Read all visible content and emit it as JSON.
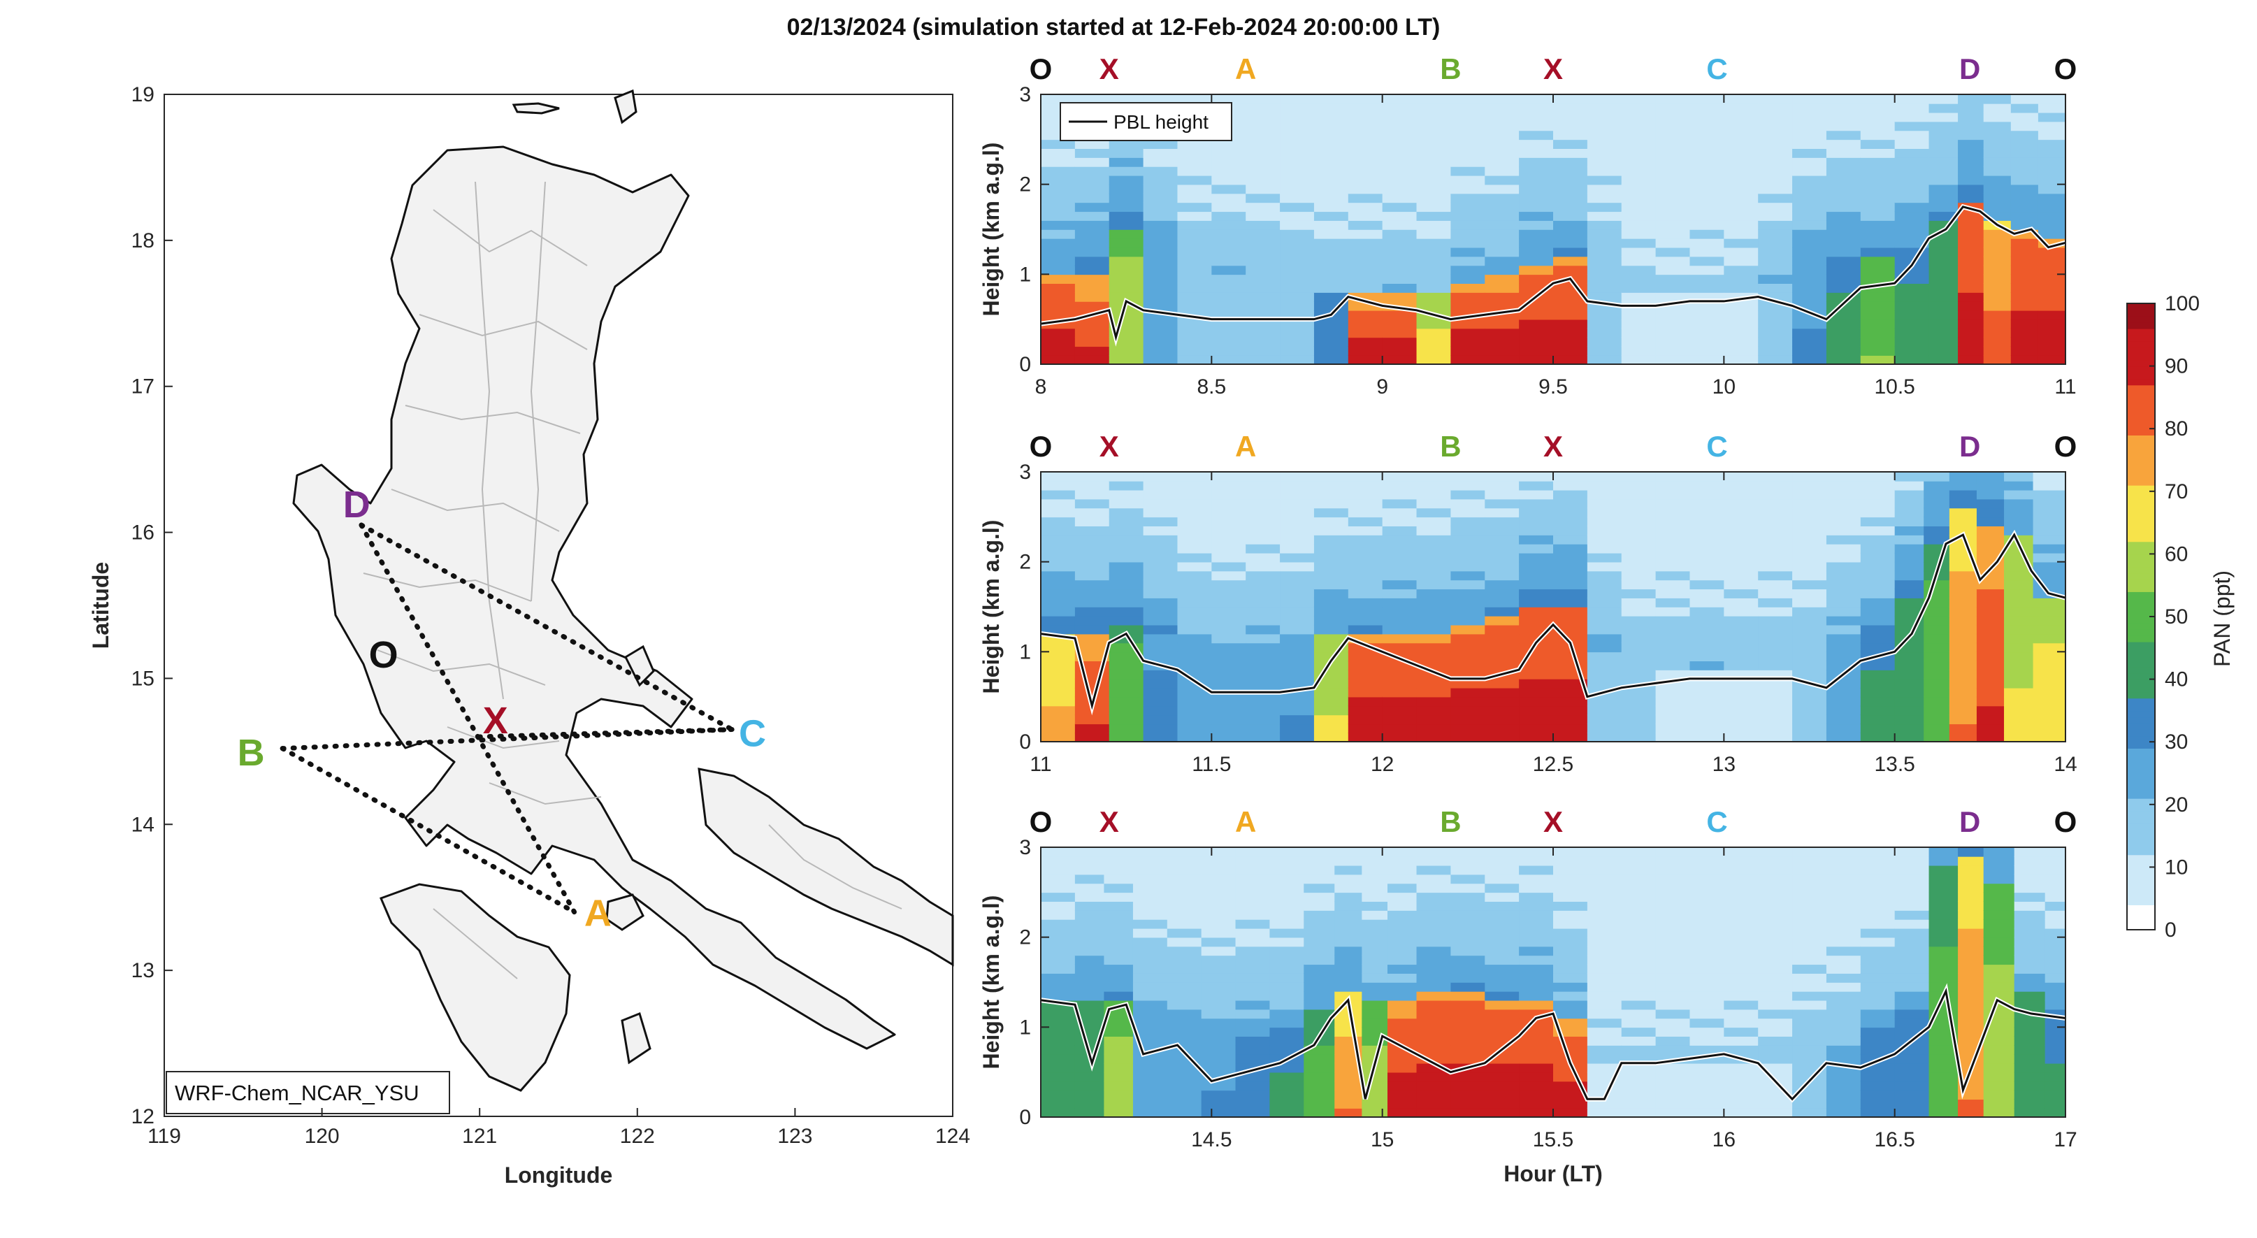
{
  "figure_title": "02/13/2024 (simulation started at 12-Feb-2024 20:00:00 LT)",
  "colors": {
    "O": "#111111",
    "X": "#a50f27",
    "A": "#f0a821",
    "B": "#6aaa2e",
    "C": "#44b4e4",
    "D": "#7b2d8e"
  },
  "colormap": [
    "#ffffff",
    "#cde9f8",
    "#8fcbec",
    "#5aa8db",
    "#3d86c6",
    "#3c9e63",
    "#55b84a",
    "#a6d44d",
    "#f7e34a",
    "#f8a43c",
    "#ee5a2a",
    "#c7191d",
    "#9c0f18"
  ],
  "map": {
    "model_label": "WRF-Chem_NCAR_YSU",
    "xlabel": "Longitude",
    "ylabel": "Latitude",
    "xticks": [
      "119",
      "120",
      "121",
      "122",
      "123",
      "124"
    ],
    "yticks": [
      "12",
      "13",
      "14",
      "15",
      "16",
      "17",
      "18",
      "19"
    ],
    "points": [
      {
        "label": "D",
        "lon": 120.25,
        "lat": 16.05
      },
      {
        "label": "O",
        "lon": 120.37,
        "lat": 15.17
      },
      {
        "label": "X",
        "lon": 121.0,
        "lat": 14.6
      },
      {
        "label": "B",
        "lon": 119.75,
        "lat": 14.52
      },
      {
        "label": "C",
        "lon": 122.6,
        "lat": 14.65
      },
      {
        "label": "A",
        "lon": 121.6,
        "lat": 13.4
      }
    ],
    "label_positions": [
      {
        "label": "D",
        "lon": 120.22,
        "lat": 16.2
      },
      {
        "label": "O",
        "lon": 120.39,
        "lat": 15.17
      },
      {
        "label": "X",
        "lon": 121.1,
        "lat": 14.72
      },
      {
        "label": "B",
        "lon": 119.55,
        "lat": 14.5
      },
      {
        "label": "C",
        "lon": 122.73,
        "lat": 14.63
      },
      {
        "label": "A",
        "lon": 121.75,
        "lat": 13.4
      }
    ]
  },
  "chart_data": [
    {
      "type": "heatmap",
      "title": "02/13/2024 (simulation started at 12-Feb-2024 20:00:00 LT)",
      "ylabel": "Height (km a.g.l)",
      "xlabel": "",
      "xlim": [
        8,
        11
      ],
      "ylim": [
        0,
        3
      ],
      "xticks": [
        "8",
        "8.5",
        "9",
        "9.5",
        "10",
        "10.5",
        "11"
      ],
      "yticks": [
        "0",
        "1",
        "2",
        "3"
      ],
      "legend": "PBL height",
      "waypoints": [
        {
          "label": "O",
          "x": 8.0
        },
        {
          "label": "X",
          "x": 8.2
        },
        {
          "label": "A",
          "x": 8.6
        },
        {
          "label": "B",
          "x": 9.2
        },
        {
          "label": "X",
          "x": 9.5
        },
        {
          "label": "C",
          "x": 9.98
        },
        {
          "label": "D",
          "x": 10.72
        },
        {
          "label": "O",
          "x": 11.0
        }
      ],
      "pbl": {
        "x": [
          8.0,
          8.1,
          8.2,
          8.22,
          8.25,
          8.3,
          8.4,
          8.5,
          8.6,
          8.7,
          8.8,
          8.85,
          8.9,
          9.0,
          9.1,
          9.2,
          9.3,
          9.4,
          9.45,
          9.5,
          9.55,
          9.6,
          9.7,
          9.8,
          9.9,
          10.0,
          10.1,
          10.2,
          10.3,
          10.4,
          10.5,
          10.55,
          10.6,
          10.65,
          10.7,
          10.75,
          10.8,
          10.85,
          10.9,
          10.95,
          11.0
        ],
        "y": [
          0.45,
          0.5,
          0.6,
          0.3,
          0.7,
          0.6,
          0.55,
          0.5,
          0.5,
          0.5,
          0.5,
          0.55,
          0.75,
          0.65,
          0.6,
          0.5,
          0.55,
          0.6,
          0.75,
          0.9,
          0.95,
          0.7,
          0.65,
          0.65,
          0.7,
          0.7,
          0.75,
          0.65,
          0.5,
          0.85,
          0.9,
          1.1,
          1.4,
          1.5,
          1.75,
          1.7,
          1.55,
          1.45,
          1.5,
          1.3,
          1.35
        ]
      },
      "profiles": [
        {
          "x": 8.05,
          "top": 1.0,
          "base": 95,
          "aloft": 25
        },
        {
          "x": 8.15,
          "top": 1.0,
          "base": 90,
          "aloft": 30
        },
        {
          "x": 8.25,
          "top": 1.5,
          "base": 60,
          "aloft": 30
        },
        {
          "x": 8.35,
          "top": 1.3,
          "base": 25,
          "aloft": 20
        },
        {
          "x": 8.45,
          "top": 1.0,
          "base": 20,
          "aloft": 15
        },
        {
          "x": 8.55,
          "top": 1.0,
          "base": 15,
          "aloft": 15
        },
        {
          "x": 8.65,
          "top": 1.0,
          "base": 15,
          "aloft": 15
        },
        {
          "x": 8.75,
          "top": 0.9,
          "base": 20,
          "aloft": 15
        },
        {
          "x": 8.85,
          "top": 0.8,
          "base": 35,
          "aloft": 15
        },
        {
          "x": 8.95,
          "top": 0.8,
          "base": 95,
          "aloft": 15
        },
        {
          "x": 9.05,
          "top": 0.8,
          "base": 95,
          "aloft": 15
        },
        {
          "x": 9.15,
          "top": 0.8,
          "base": 70,
          "aloft": 15
        },
        {
          "x": 9.25,
          "top": 0.9,
          "base": 95,
          "aloft": 20
        },
        {
          "x": 9.35,
          "top": 1.0,
          "base": 95,
          "aloft": 20
        },
        {
          "x": 9.45,
          "top": 1.1,
          "base": 95,
          "aloft": 25
        },
        {
          "x": 9.55,
          "top": 1.2,
          "base": 95,
          "aloft": 25
        },
        {
          "x": 9.65,
          "top": 1.0,
          "base": 20,
          "aloft": 15
        },
        {
          "x": 9.75,
          "top": 0.8,
          "base": 10,
          "aloft": 10
        },
        {
          "x": 9.85,
          "top": 0.8,
          "base": 10,
          "aloft": 10
        },
        {
          "x": 9.95,
          "top": 0.8,
          "base": 10,
          "aloft": 10
        },
        {
          "x": 10.05,
          "top": 0.8,
          "base": 10,
          "aloft": 10
        },
        {
          "x": 10.15,
          "top": 0.9,
          "base": 15,
          "aloft": 15
        },
        {
          "x": 10.25,
          "top": 1.2,
          "base": 30,
          "aloft": 20
        },
        {
          "x": 10.35,
          "top": 1.2,
          "base": 40,
          "aloft": 25
        },
        {
          "x": 10.45,
          "top": 1.2,
          "base": 55,
          "aloft": 25
        },
        {
          "x": 10.55,
          "top": 1.3,
          "base": 40,
          "aloft": 25
        },
        {
          "x": 10.65,
          "top": 1.6,
          "base": 45,
          "aloft": 25
        },
        {
          "x": 10.72,
          "top": 1.8,
          "base": 95,
          "aloft": 30
        },
        {
          "x": 10.8,
          "top": 1.6,
          "base": 85,
          "aloft": 25
        },
        {
          "x": 10.88,
          "top": 1.5,
          "base": 95,
          "aloft": 25
        },
        {
          "x": 10.96,
          "top": 1.4,
          "base": 95,
          "aloft": 25
        }
      ]
    },
    {
      "type": "heatmap",
      "title": "",
      "ylabel": "Height (km a.g.l)",
      "xlabel": "",
      "xlim": [
        11,
        14
      ],
      "ylim": [
        0,
        3
      ],
      "xticks": [
        "11",
        "11.5",
        "12",
        "12.5",
        "13",
        "13.5",
        "14"
      ],
      "yticks": [
        "0",
        "1",
        "2",
        "3"
      ],
      "waypoints": [
        {
          "label": "O",
          "x": 11.0
        },
        {
          "label": "X",
          "x": 11.2
        },
        {
          "label": "A",
          "x": 11.6
        },
        {
          "label": "B",
          "x": 12.2
        },
        {
          "label": "X",
          "x": 12.5
        },
        {
          "label": "C",
          "x": 12.98
        },
        {
          "label": "D",
          "x": 13.72
        },
        {
          "label": "O",
          "x": 14.0
        }
      ],
      "pbl": {
        "x": [
          11.0,
          11.1,
          11.15,
          11.2,
          11.25,
          11.3,
          11.4,
          11.5,
          11.6,
          11.7,
          11.8,
          11.85,
          11.9,
          12.0,
          12.1,
          12.2,
          12.3,
          12.4,
          12.45,
          12.5,
          12.55,
          12.6,
          12.7,
          12.8,
          12.9,
          13.0,
          13.1,
          13.2,
          13.3,
          13.4,
          13.5,
          13.55,
          13.6,
          13.65,
          13.7,
          13.75,
          13.8,
          13.85,
          13.9,
          13.95,
          14.0
        ],
        "y": [
          1.2,
          1.15,
          0.4,
          1.1,
          1.2,
          0.9,
          0.8,
          0.55,
          0.55,
          0.55,
          0.6,
          0.9,
          1.15,
          1.0,
          0.85,
          0.7,
          0.7,
          0.8,
          1.1,
          1.3,
          1.1,
          0.5,
          0.6,
          0.65,
          0.7,
          0.7,
          0.7,
          0.7,
          0.6,
          0.9,
          1.0,
          1.2,
          1.6,
          2.2,
          2.3,
          1.8,
          2.0,
          2.3,
          1.9,
          1.65,
          1.6
        ]
      },
      "profiles": [
        {
          "x": 11.05,
          "top": 1.2,
          "base": 75,
          "aloft": 30
        },
        {
          "x": 11.15,
          "top": 1.2,
          "base": 90,
          "aloft": 30
        },
        {
          "x": 11.25,
          "top": 1.3,
          "base": 50,
          "aloft": 30
        },
        {
          "x": 11.35,
          "top": 1.2,
          "base": 30,
          "aloft": 25
        },
        {
          "x": 11.45,
          "top": 1.0,
          "base": 25,
          "aloft": 20
        },
        {
          "x": 11.55,
          "top": 0.9,
          "base": 25,
          "aloft": 20
        },
        {
          "x": 11.65,
          "top": 0.9,
          "base": 25,
          "aloft": 20
        },
        {
          "x": 11.75,
          "top": 1.0,
          "base": 30,
          "aloft": 20
        },
        {
          "x": 11.85,
          "top": 1.2,
          "base": 65,
          "aloft": 25
        },
        {
          "x": 11.95,
          "top": 1.2,
          "base": 95,
          "aloft": 25
        },
        {
          "x": 12.05,
          "top": 1.2,
          "base": 95,
          "aloft": 25
        },
        {
          "x": 12.15,
          "top": 1.2,
          "base": 95,
          "aloft": 25
        },
        {
          "x": 12.25,
          "top": 1.3,
          "base": 95,
          "aloft": 25
        },
        {
          "x": 12.35,
          "top": 1.4,
          "base": 95,
          "aloft": 25
        },
        {
          "x": 12.45,
          "top": 1.5,
          "base": 95,
          "aloft": 30
        },
        {
          "x": 12.55,
          "top": 1.5,
          "base": 95,
          "aloft": 30
        },
        {
          "x": 12.65,
          "top": 1.0,
          "base": 20,
          "aloft": 20
        },
        {
          "x": 12.75,
          "top": 0.8,
          "base": 15,
          "aloft": 15
        },
        {
          "x": 12.85,
          "top": 0.8,
          "base": 10,
          "aloft": 15
        },
        {
          "x": 12.95,
          "top": 0.8,
          "base": 10,
          "aloft": 15
        },
        {
          "x": 13.05,
          "top": 0.8,
          "base": 10,
          "aloft": 15
        },
        {
          "x": 13.15,
          "top": 0.8,
          "base": 10,
          "aloft": 15
        },
        {
          "x": 13.25,
          "top": 0.9,
          "base": 15,
          "aloft": 15
        },
        {
          "x": 13.35,
          "top": 1.0,
          "base": 25,
          "aloft": 20
        },
        {
          "x": 13.45,
          "top": 1.2,
          "base": 40,
          "aloft": 25
        },
        {
          "x": 13.55,
          "top": 1.6,
          "base": 45,
          "aloft": 30
        },
        {
          "x": 13.62,
          "top": 2.2,
          "base": 50,
          "aloft": 30
        },
        {
          "x": 13.7,
          "top": 2.6,
          "base": 80,
          "aloft": 30
        },
        {
          "x": 13.78,
          "top": 2.4,
          "base": 90,
          "aloft": 30
        },
        {
          "x": 13.86,
          "top": 2.3,
          "base": 65,
          "aloft": 25
        },
        {
          "x": 13.95,
          "top": 1.6,
          "base": 70,
          "aloft": 25
        }
      ]
    },
    {
      "type": "heatmap",
      "title": "",
      "ylabel": "Height (km a.g.l)",
      "xlabel": "Hour (LT)",
      "xlim": [
        14,
        17
      ],
      "ylim": [
        0,
        3
      ],
      "xticks": [
        "14.5",
        "15",
        "15.5",
        "16",
        "16.5",
        "17"
      ],
      "yticks": [
        "0",
        "1",
        "2",
        "3"
      ],
      "waypoints": [
        {
          "label": "O",
          "x": 14.0
        },
        {
          "label": "X",
          "x": 14.2
        },
        {
          "label": "A",
          "x": 14.6
        },
        {
          "label": "B",
          "x": 15.2
        },
        {
          "label": "X",
          "x": 15.5
        },
        {
          "label": "C",
          "x": 15.98
        },
        {
          "label": "D",
          "x": 16.72
        },
        {
          "label": "O",
          "x": 17.0
        }
      ],
      "pbl": {
        "x": [
          14.0,
          14.1,
          14.15,
          14.2,
          14.25,
          14.3,
          14.4,
          14.5,
          14.6,
          14.7,
          14.8,
          14.85,
          14.9,
          14.95,
          15.0,
          15.1,
          15.2,
          15.3,
          15.4,
          15.45,
          15.5,
          15.55,
          15.6,
          15.65,
          15.7,
          15.8,
          15.9,
          16.0,
          16.1,
          16.2,
          16.3,
          16.4,
          16.5,
          16.6,
          16.65,
          16.7,
          16.75,
          16.8,
          16.85,
          16.9,
          17.0
        ],
        "y": [
          1.3,
          1.25,
          0.6,
          1.2,
          1.25,
          0.7,
          0.8,
          0.4,
          0.5,
          0.6,
          0.8,
          1.1,
          1.3,
          0.2,
          0.9,
          0.7,
          0.5,
          0.6,
          0.9,
          1.1,
          1.15,
          0.6,
          0.2,
          0.2,
          0.6,
          0.6,
          0.65,
          0.7,
          0.6,
          0.2,
          0.6,
          0.55,
          0.7,
          1.0,
          1.4,
          0.3,
          0.8,
          1.3,
          1.2,
          1.15,
          1.1
        ]
      },
      "profiles": [
        {
          "x": 14.05,
          "top": 1.3,
          "base": 45,
          "aloft": 20
        },
        {
          "x": 14.15,
          "top": 1.3,
          "base": 45,
          "aloft": 25
        },
        {
          "x": 14.22,
          "top": 1.3,
          "base": 60,
          "aloft": 25
        },
        {
          "x": 14.32,
          "top": 1.1,
          "base": 25,
          "aloft": 20
        },
        {
          "x": 14.42,
          "top": 1.0,
          "base": 25,
          "aloft": 20
        },
        {
          "x": 14.52,
          "top": 0.9,
          "base": 30,
          "aloft": 20
        },
        {
          "x": 14.62,
          "top": 0.9,
          "base": 35,
          "aloft": 20
        },
        {
          "x": 14.72,
          "top": 1.0,
          "base": 40,
          "aloft": 20
        },
        {
          "x": 14.82,
          "top": 1.2,
          "base": 50,
          "aloft": 25
        },
        {
          "x": 14.9,
          "top": 1.4,
          "base": 80,
          "aloft": 25
        },
        {
          "x": 14.98,
          "top": 1.3,
          "base": 60,
          "aloft": 20
        },
        {
          "x": 15.05,
          "top": 1.3,
          "base": 95,
          "aloft": 20
        },
        {
          "x": 15.15,
          "top": 1.4,
          "base": 95,
          "aloft": 25
        },
        {
          "x": 15.25,
          "top": 1.4,
          "base": 95,
          "aloft": 25
        },
        {
          "x": 15.35,
          "top": 1.3,
          "base": 95,
          "aloft": 25
        },
        {
          "x": 15.45,
          "top": 1.3,
          "base": 95,
          "aloft": 25
        },
        {
          "x": 15.55,
          "top": 1.1,
          "base": 95,
          "aloft": 20
        },
        {
          "x": 15.65,
          "top": 0.6,
          "base": 10,
          "aloft": 10
        },
        {
          "x": 15.75,
          "top": 0.6,
          "base": 5,
          "aloft": 10
        },
        {
          "x": 15.85,
          "top": 0.6,
          "base": 5,
          "aloft": 10
        },
        {
          "x": 15.95,
          "top": 0.6,
          "base": 5,
          "aloft": 10
        },
        {
          "x": 16.05,
          "top": 0.6,
          "base": 5,
          "aloft": 10
        },
        {
          "x": 16.15,
          "top": 0.6,
          "base": 10,
          "aloft": 10
        },
        {
          "x": 16.25,
          "top": 0.6,
          "base": 15,
          "aloft": 15
        },
        {
          "x": 16.35,
          "top": 0.8,
          "base": 25,
          "aloft": 15
        },
        {
          "x": 16.45,
          "top": 1.0,
          "base": 35,
          "aloft": 20
        },
        {
          "x": 16.55,
          "top": 1.2,
          "base": 35,
          "aloft": 20
        },
        {
          "x": 16.65,
          "top": 2.8,
          "base": 50,
          "aloft": 25
        },
        {
          "x": 16.72,
          "top": 2.9,
          "base": 80,
          "aloft": 30
        },
        {
          "x": 16.8,
          "top": 2.6,
          "base": 60,
          "aloft": 25
        },
        {
          "x": 16.9,
          "top": 1.4,
          "base": 45,
          "aloft": 20
        },
        {
          "x": 16.98,
          "top": 1.2,
          "base": 40,
          "aloft": 20
        }
      ]
    }
  ],
  "colorbar": {
    "label": "PAN (ppt)",
    "ticks": [
      "0",
      "10",
      "20",
      "30",
      "40",
      "50",
      "60",
      "70",
      "80",
      "90",
      "100"
    ]
  }
}
